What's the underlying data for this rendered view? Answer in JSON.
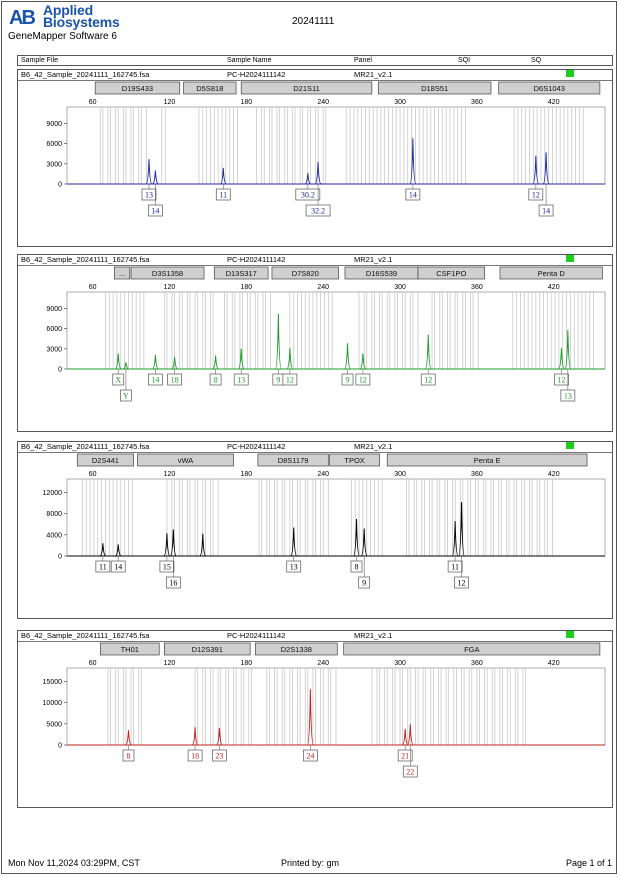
{
  "header": {
    "logo_mark": "AB",
    "brand_line1": "Applied",
    "brand_line2": "Biosystems",
    "software": "GeneMapper Software 6",
    "doc_title": "20241111"
  },
  "columns": [
    "Sample File",
    "Sample Name",
    "Panel",
    "SQI",
    "SQ"
  ],
  "colors": {
    "blue": "#1f2a9c",
    "green": "#1e9b2e",
    "black": "#000000",
    "red": "#c0231f",
    "flag": "#1ed01e",
    "bin": "#c8c8c8",
    "allele_label": "#333333"
  },
  "chart_data": [
    {
      "type": "line",
      "sample_file": "B6_42_Sample_20241111_162745.fsa",
      "sample_name": "PC-H2024111142",
      "panel": "MR21_v2.1",
      "xlim": [
        40,
        460
      ],
      "x_ticks": [
        "60",
        "120",
        "180",
        "240",
        "300",
        "360",
        "420"
      ],
      "ylim": [
        0,
        11000
      ],
      "y_ticks": [
        "0",
        "3000",
        "6000",
        "9000"
      ],
      "color": "blue",
      "markers": [
        {
          "label": "D19S433",
          "from": 62,
          "to": 128
        },
        {
          "label": "D5S818",
          "from": 131,
          "to": 172
        },
        {
          "label": "D21S11",
          "from": 176,
          "to": 278
        },
        {
          "label": "D18S51",
          "from": 283,
          "to": 371
        },
        {
          "label": "D6S1043",
          "from": 377,
          "to": 456
        }
      ],
      "bins": [
        {
          "from": 66,
          "to": 102
        },
        {
          "from": 114,
          "to": 119
        },
        {
          "from": 143,
          "to": 173
        },
        {
          "from": 188,
          "to": 244
        },
        {
          "from": 258,
          "to": 352
        },
        {
          "from": 389,
          "to": 445
        }
      ],
      "peaks": [
        {
          "x": 104,
          "y": 3700
        },
        {
          "x": 109,
          "y": 2000
        },
        {
          "x": 162,
          "y": 2400
        },
        {
          "x": 228,
          "y": 1600
        },
        {
          "x": 236,
          "y": 3300
        },
        {
          "x": 310,
          "y": 6800
        },
        {
          "x": 406,
          "y": 4200
        },
        {
          "x": 414,
          "y": 4700
        }
      ],
      "alleles": [
        {
          "label": "13",
          "x": 104,
          "row": 0
        },
        {
          "label": "14",
          "x": 109,
          "row": 1
        },
        {
          "label": "11",
          "x": 162,
          "row": 0
        },
        {
          "label": "30.2",
          "x": 228,
          "row": 0
        },
        {
          "label": "32.2",
          "x": 236,
          "row": 1
        },
        {
          "label": "14",
          "x": 310,
          "row": 0
        },
        {
          "label": "12",
          "x": 406,
          "row": 0
        },
        {
          "label": "14",
          "x": 414,
          "row": 1
        }
      ]
    },
    {
      "type": "line",
      "sample_file": "B6_42_Sample_20241111_162745.fsa",
      "sample_name": "PC-H2024111142",
      "panel": "MR21_v2.1",
      "xlim": [
        40,
        460
      ],
      "x_ticks": [
        "60",
        "120",
        "180",
        "240",
        "300",
        "360",
        "420"
      ],
      "ylim": [
        0,
        11000
      ],
      "y_ticks": [
        "0",
        "3000",
        "6000",
        "9000"
      ],
      "color": "green",
      "markers": [
        {
          "label": "...",
          "from": 77,
          "to": 89
        },
        {
          "label": "D3S1358",
          "from": 90,
          "to": 147
        },
        {
          "label": "D13S317",
          "from": 155,
          "to": 197
        },
        {
          "label": "D7S820",
          "from": 200,
          "to": 252
        },
        {
          "label": "D16S539",
          "from": 257,
          "to": 314
        },
        {
          "label": "CSF1PO",
          "from": 314,
          "to": 366
        },
        {
          "label": "Penta D",
          "from": 378,
          "to": 458
        }
      ],
      "bins": [
        {
          "from": 70,
          "to": 100
        },
        {
          "from": 116,
          "to": 156
        },
        {
          "from": 163,
          "to": 199
        },
        {
          "from": 214,
          "to": 248
        },
        {
          "from": 268,
          "to": 315
        },
        {
          "from": 325,
          "to": 361
        },
        {
          "from": 388,
          "to": 452
        }
      ],
      "peaks": [
        {
          "x": 80,
          "y": 2300
        },
        {
          "x": 86,
          "y": 1000
        },
        {
          "x": 109,
          "y": 2100
        },
        {
          "x": 124,
          "y": 1800
        },
        {
          "x": 156,
          "y": 2000
        },
        {
          "x": 176,
          "y": 3000
        },
        {
          "x": 205,
          "y": 8200
        },
        {
          "x": 214,
          "y": 3100
        },
        {
          "x": 259,
          "y": 3800
        },
        {
          "x": 271,
          "y": 2300
        },
        {
          "x": 322,
          "y": 5100
        },
        {
          "x": 426,
          "y": 3100
        },
        {
          "x": 431,
          "y": 5800
        }
      ],
      "alleles": [
        {
          "label": "X",
          "x": 80,
          "row": 0
        },
        {
          "label": "Y",
          "x": 86,
          "row": 1
        },
        {
          "label": "14",
          "x": 109,
          "row": 0
        },
        {
          "label": "18",
          "x": 124,
          "row": 0
        },
        {
          "label": "8",
          "x": 156,
          "row": 0
        },
        {
          "label": "13",
          "x": 176,
          "row": 0
        },
        {
          "label": "9",
          "x": 205,
          "row": 0
        },
        {
          "label": "12",
          "x": 214,
          "row": 0
        },
        {
          "label": "9",
          "x": 259,
          "row": 0
        },
        {
          "label": "12",
          "x": 271,
          "row": 0
        },
        {
          "label": "12",
          "x": 322,
          "row": 0
        },
        {
          "label": "12",
          "x": 426,
          "row": 0
        },
        {
          "label": "13",
          "x": 431,
          "row": 1
        }
      ]
    },
    {
      "type": "line",
      "sample_file": "B6_42_Sample_20241111_162745.fsa",
      "sample_name": "PC-H2024111142",
      "panel": "MR21_v2.1",
      "xlim": [
        40,
        460
      ],
      "x_ticks": [
        "60",
        "120",
        "180",
        "240",
        "300",
        "360",
        "420"
      ],
      "ylim": [
        0,
        14000
      ],
      "y_ticks": [
        "0",
        "4000",
        "8000",
        "12000"
      ],
      "color": "black",
      "markers": [
        {
          "label": "D2S441",
          "from": 48,
          "to": 92
        },
        {
          "label": "vWA",
          "from": 95,
          "to": 170
        },
        {
          "label": "D8S1179",
          "from": 189,
          "to": 244
        },
        {
          "label": "TPOX",
          "from": 245,
          "to": 284
        },
        {
          "label": "Penta E",
          "from": 290,
          "to": 446
        }
      ],
      "bins": [
        {
          "from": 52,
          "to": 92
        },
        {
          "from": 118,
          "to": 158
        },
        {
          "from": 190,
          "to": 244
        },
        {
          "from": 262,
          "to": 288
        },
        {
          "from": 305,
          "to": 420
        }
      ],
      "peaks": [
        {
          "x": 68,
          "y": 2400
        },
        {
          "x": 80,
          "y": 2200
        },
        {
          "x": 118,
          "y": 4300
        },
        {
          "x": 123,
          "y": 5000
        },
        {
          "x": 146,
          "y": 4200
        },
        {
          "x": 217,
          "y": 5400
        },
        {
          "x": 266,
          "y": 7000
        },
        {
          "x": 272,
          "y": 5200
        },
        {
          "x": 343,
          "y": 6600
        },
        {
          "x": 348,
          "y": 10200
        }
      ],
      "alleles": [
        {
          "label": "11",
          "x": 68,
          "row": 0
        },
        {
          "label": "14",
          "x": 80,
          "row": 0
        },
        {
          "label": "15",
          "x": 118,
          "row": 0
        },
        {
          "label": "16",
          "x": 123,
          "row": 1
        },
        {
          "label": "13",
          "x": 217,
          "row": 0
        },
        {
          "label": "8",
          "x": 266,
          "row": 0
        },
        {
          "label": "9",
          "x": 272,
          "row": 1
        },
        {
          "label": "11",
          "x": 343,
          "row": 0
        },
        {
          "label": "12",
          "x": 348,
          "row": 1
        }
      ]
    },
    {
      "type": "line",
      "sample_file": "B6_42_Sample_20241111_162745.fsa",
      "sample_name": "PC-H2024111142",
      "panel": "MR21_v2.1",
      "xlim": [
        40,
        460
      ],
      "x_ticks": [
        "60",
        "120",
        "180",
        "240",
        "300",
        "360",
        "420"
      ],
      "ylim": [
        0,
        17500
      ],
      "y_ticks": [
        "0",
        "5000",
        "10000",
        "15000"
      ],
      "color": "red",
      "markers": [
        {
          "label": "TH01",
          "from": 66,
          "to": 112
        },
        {
          "label": "D12S391",
          "from": 116,
          "to": 183
        },
        {
          "label": "D2S1338",
          "from": 187,
          "to": 251
        },
        {
          "label": "FGA",
          "from": 256,
          "to": 456
        }
      ],
      "bins": [
        {
          "from": 72,
          "to": 100
        },
        {
          "from": 140,
          "to": 184
        },
        {
          "from": 196,
          "to": 250
        },
        {
          "from": 278,
          "to": 398
        }
      ],
      "peaks": [
        {
          "x": 88,
          "y": 3500
        },
        {
          "x": 140,
          "y": 4200
        },
        {
          "x": 159,
          "y": 4000
        },
        {
          "x": 230,
          "y": 13200
        },
        {
          "x": 304,
          "y": 3800
        },
        {
          "x": 308,
          "y": 4900
        }
      ],
      "alleles": [
        {
          "label": "8",
          "x": 88,
          "row": 0
        },
        {
          "label": "18",
          "x": 140,
          "row": 0
        },
        {
          "label": "23",
          "x": 159,
          "row": 0
        },
        {
          "label": "24",
          "x": 230,
          "row": 0
        },
        {
          "label": "21",
          "x": 304,
          "row": 0
        },
        {
          "label": "22",
          "x": 308,
          "row": 1
        }
      ]
    }
  ],
  "footer": {
    "date": "Mon Nov 11,2024 03:29PM, CST",
    "printed_by": "Printed by: gm",
    "page": "Page 1 of 1"
  }
}
